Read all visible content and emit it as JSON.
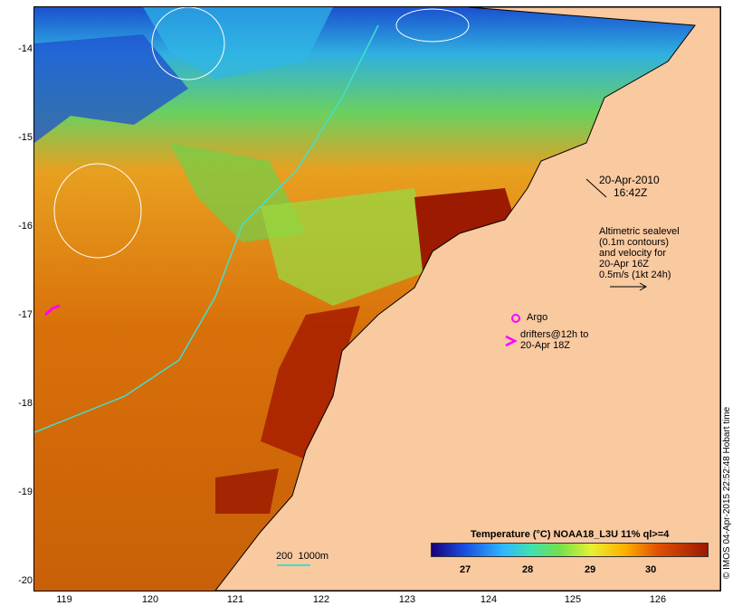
{
  "axes": {
    "y_ticks": [
      "-14",
      "-15",
      "-16",
      "-17",
      "-18",
      "-19",
      "-20"
    ],
    "x_ticks": [
      "119",
      "120",
      "121",
      "122",
      "123",
      "124",
      "125",
      "126"
    ]
  },
  "annotations": {
    "datetime_line1": "20-Apr-2010",
    "datetime_line2": "16:42Z",
    "altimetric_text": "Altimetric sealevel\n(0.1m contours)\nand velocity for\n20-Apr 16Z\n0.5m/s (1kt 24h)",
    "argo_label": "Argo",
    "drifters_text": "drifters@12h to\n20-Apr 18Z",
    "isobath_label": "200  1000m"
  },
  "colorbar": {
    "title": "Temperature (°C) NOAA18_L3U 11% ql>=4",
    "labels": [
      "27",
      "28",
      "29",
      "30"
    ]
  },
  "timestamp": "© IMOS 04-Apr-2015 22:52:48 Hobart time",
  "colors": {
    "land": "#f9c9a0",
    "sst_warm": "#9b1a00",
    "sst_mid": "#e08a10",
    "sst_cool": "#1a3fc0",
    "drifter": "#ff00ff",
    "isobath": "#40e0d0"
  }
}
